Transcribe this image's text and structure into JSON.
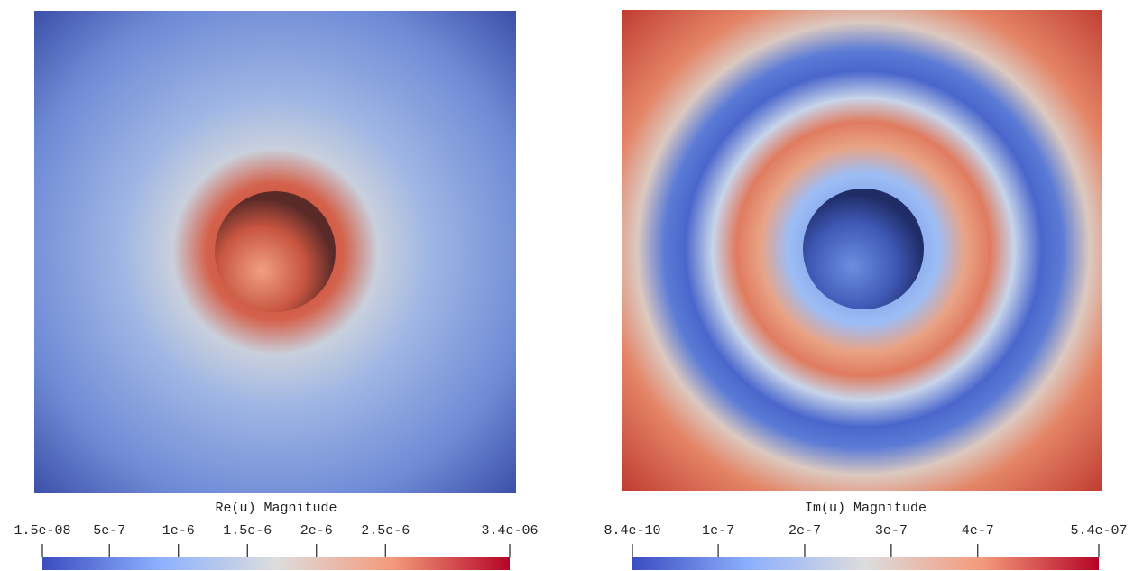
{
  "chart_data": [
    {
      "type": "colorbar",
      "title": "Re(u) Magnitude",
      "clim": [
        1.5e-08,
        3.4e-06
      ],
      "cticks": [
        {
          "value": 1.5e-08,
          "label": "1.5e-08"
        },
        {
          "value": 5e-07,
          "label": "5e-7"
        },
        {
          "value": 1e-06,
          "label": "1e-6"
        },
        {
          "value": 1.5e-06,
          "label": "1.5e-6"
        },
        {
          "value": 2e-06,
          "label": "2e-6"
        },
        {
          "value": 2.5e-06,
          "label": "2.5e-6"
        },
        {
          "value": 3.4e-06,
          "label": "3.4e-06"
        }
      ]
    },
    {
      "type": "colorbar",
      "title": "Im(u) Magnitude",
      "clim": [
        8.4e-10,
        5.4e-07
      ],
      "cticks": [
        {
          "value": 8.4e-10,
          "label": "8.4e-10"
        },
        {
          "value": 1e-07,
          "label": "1e-7"
        },
        {
          "value": 2e-07,
          "label": "2e-7"
        },
        {
          "value": 3e-07,
          "label": "3e-7"
        },
        {
          "value": 4e-07,
          "label": "4e-7"
        },
        {
          "value": 5.4e-07,
          "label": "5.4e-07"
        }
      ]
    }
  ]
}
